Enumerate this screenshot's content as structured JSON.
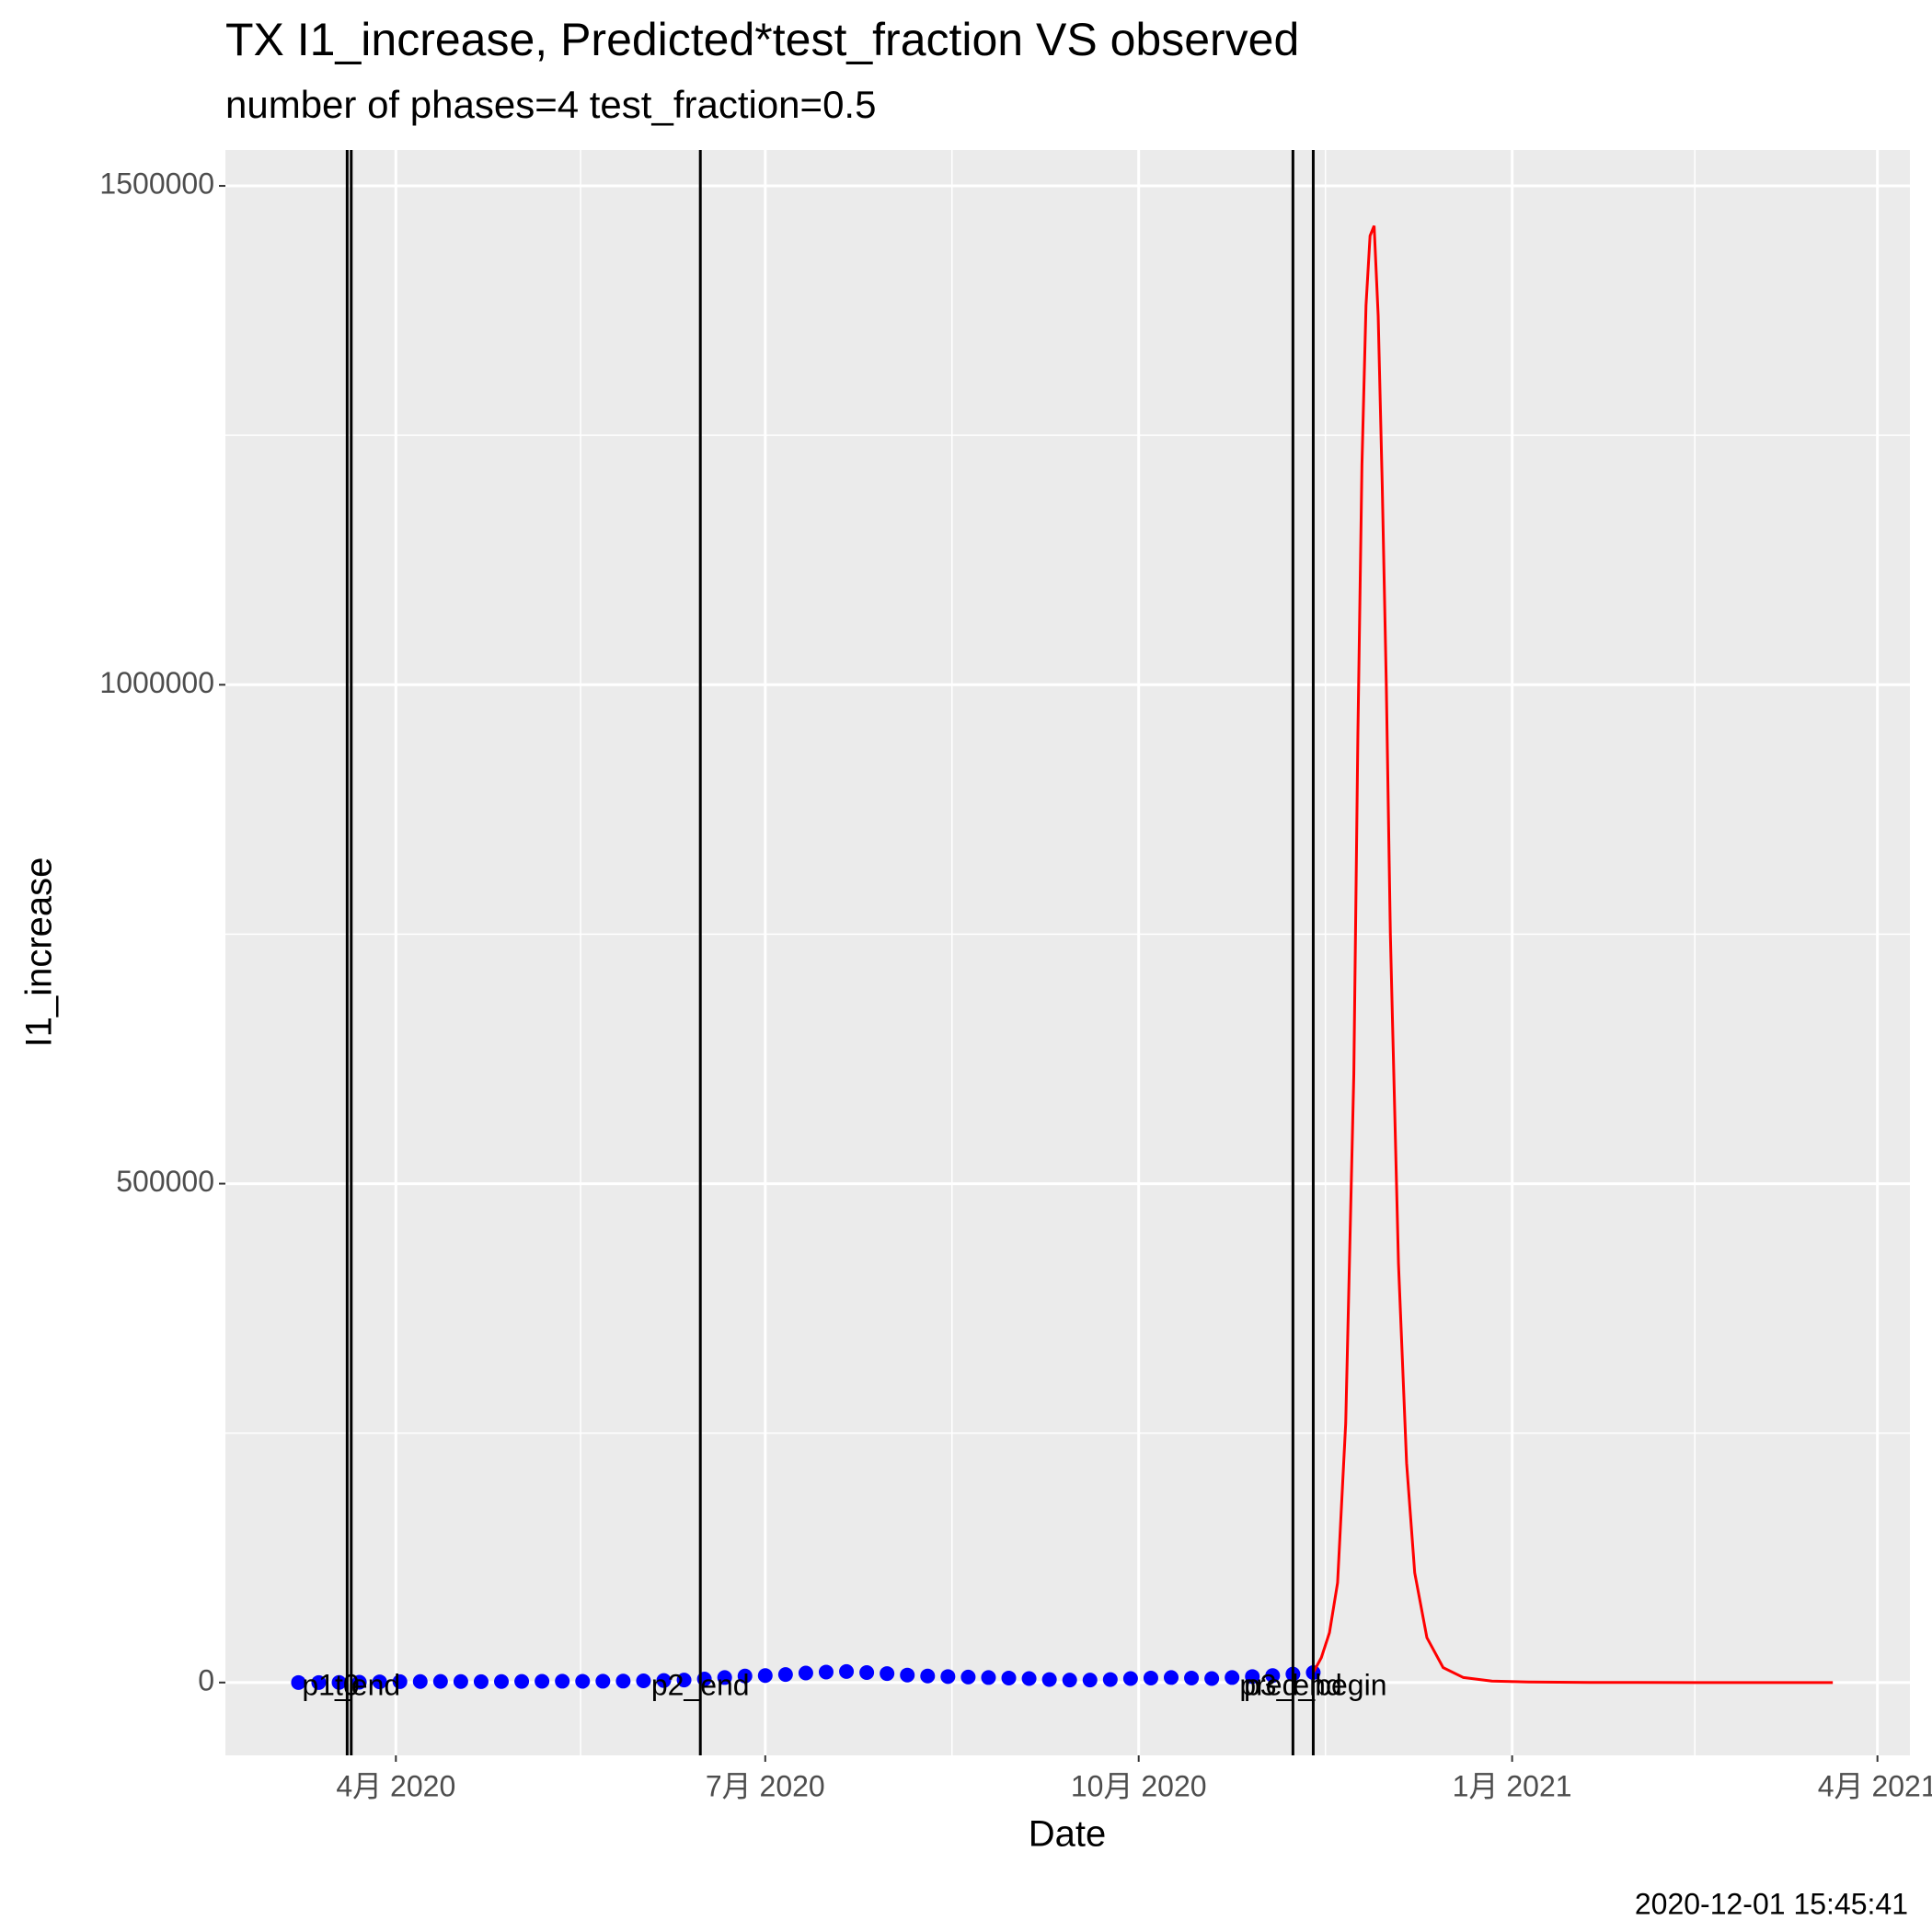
{
  "chart_data": {
    "type": "line",
    "title": "TX I1_increase, Predicted*test_fraction VS observed",
    "subtitle": "number of phases=4   test_fraction=0.5",
    "x_label": "Date",
    "y_label": "I1_increase",
    "caption": "2020-12-01 15:45:41",
    "xlim": [
      "2020-02-19",
      "2021-04-09"
    ],
    "xticks": [
      {
        "value": "2020-04-01",
        "label": "4月 2020"
      },
      {
        "value": "2020-07-01",
        "label": "7月 2020"
      },
      {
        "value": "2020-10-01",
        "label": "10月 2020"
      },
      {
        "value": "2021-01-01",
        "label": "1月 2021"
      },
      {
        "value": "2021-04-01",
        "label": "4月 2021"
      }
    ],
    "ylim": [
      -73000,
      1536000
    ],
    "yticks": [
      0,
      500000,
      1000000,
      1500000
    ],
    "grid": true,
    "vlines": [
      {
        "label": "t0",
        "x": "2020-03-20"
      },
      {
        "label": "p1_end",
        "x": "2020-03-21"
      },
      {
        "label": "p2_end",
        "x": "2020-06-15"
      },
      {
        "label": "p3_end",
        "x": "2020-11-08"
      },
      {
        "label": "pred_begin",
        "x": "2020-11-13"
      }
    ],
    "series": [
      {
        "name": "observed",
        "style": "points",
        "color": "#0000ff",
        "x": [
          "2020-03-08",
          "2020-03-13",
          "2020-03-18",
          "2020-03-23",
          "2020-03-28",
          "2020-04-02",
          "2020-04-07",
          "2020-04-12",
          "2020-04-17",
          "2020-04-22",
          "2020-04-27",
          "2020-05-02",
          "2020-05-07",
          "2020-05-12",
          "2020-05-17",
          "2020-05-22",
          "2020-05-27",
          "2020-06-01",
          "2020-06-06",
          "2020-06-11",
          "2020-06-16",
          "2020-06-21",
          "2020-06-26",
          "2020-07-01",
          "2020-07-06",
          "2020-07-11",
          "2020-07-16",
          "2020-07-21",
          "2020-07-26",
          "2020-07-31",
          "2020-08-05",
          "2020-08-10",
          "2020-08-15",
          "2020-08-20",
          "2020-08-25",
          "2020-08-30",
          "2020-09-04",
          "2020-09-09",
          "2020-09-14",
          "2020-09-19",
          "2020-09-24",
          "2020-09-29",
          "2020-10-04",
          "2020-10-09",
          "2020-10-14",
          "2020-10-19",
          "2020-10-24",
          "2020-10-29",
          "2020-11-03",
          "2020-11-08",
          "2020-11-13"
        ],
        "values": [
          0,
          10,
          50,
          300,
          700,
          900,
          1000,
          1100,
          1000,
          900,
          1000,
          1100,
          1200,
          1300,
          1200,
          1300,
          1400,
          1700,
          2000,
          2500,
          3500,
          5000,
          6500,
          7000,
          8000,
          9500,
          10500,
          11000,
          10000,
          9000,
          7500,
          6500,
          6000,
          5500,
          5000,
          4500,
          4000,
          3000,
          2500,
          2500,
          3000,
          4000,
          4500,
          5000,
          4500,
          4000,
          5000,
          6000,
          7000,
          8500,
          10000
        ]
      },
      {
        "name": "predicted",
        "style": "line",
        "color": "#ff0000",
        "x": [
          "2020-11-13",
          "2020-11-15",
          "2020-11-17",
          "2020-11-19",
          "2020-11-21",
          "2020-11-23",
          "2020-11-24",
          "2020-11-25",
          "2020-11-26",
          "2020-11-27",
          "2020-11-28",
          "2020-11-29",
          "2020-11-30",
          "2020-12-01",
          "2020-12-02",
          "2020-12-04",
          "2020-12-06",
          "2020-12-08",
          "2020-12-11",
          "2020-12-15",
          "2020-12-20",
          "2020-12-27",
          "2021-01-05",
          "2021-01-20",
          "2021-02-15",
          "2021-03-21"
        ],
        "values": [
          10000,
          25000,
          50000,
          100000,
          260000,
          610000,
          950000,
          1220000,
          1380000,
          1450000,
          1460000,
          1370000,
          1200000,
          1000000,
          750000,
          420000,
          220000,
          110000,
          45000,
          15000,
          5000,
          1500,
          500,
          100,
          0,
          0
        ]
      }
    ]
  }
}
